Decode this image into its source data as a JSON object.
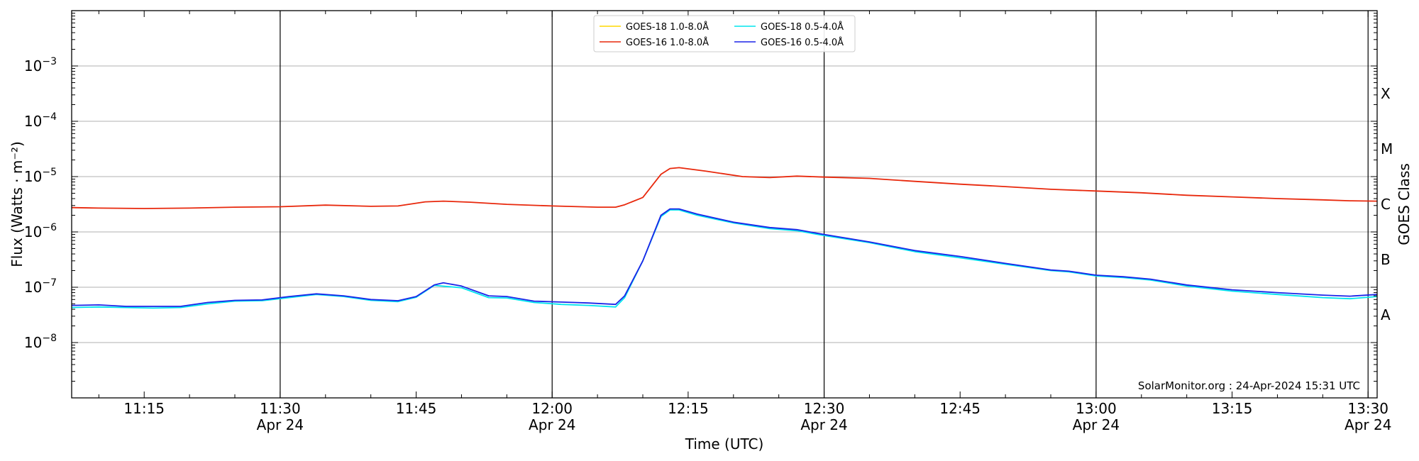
{
  "chart_data": {
    "type": "line",
    "xlabel": "Time (UTC)",
    "ylabel": "Flux (Watts · m⁻²)",
    "y2label": "GOES Class",
    "yscale": "log",
    "ylim": [
      1e-09,
      0.01
    ],
    "xlim": [
      "2024-04-24T11:07",
      "2024-04-24T13:31"
    ],
    "grid": "horizontal at decades; vertical at half-hours",
    "legend_position": "top-center",
    "credit": "SolarMonitor.org : 24-Apr-2024 15:31 UTC",
    "x_ticks": [
      {
        "time": "11:15",
        "label": "11:15",
        "date": ""
      },
      {
        "time": "11:30",
        "label": "11:30",
        "date": "Apr 24"
      },
      {
        "time": "11:45",
        "label": "11:45",
        "date": ""
      },
      {
        "time": "12:00",
        "label": "12:00",
        "date": "Apr 24"
      },
      {
        "time": "12:15",
        "label": "12:15",
        "date": ""
      },
      {
        "time": "12:30",
        "label": "12:30",
        "date": "Apr 24"
      },
      {
        "time": "12:45",
        "label": "12:45",
        "date": ""
      },
      {
        "time": "13:00",
        "label": "13:00",
        "date": "Apr 24"
      },
      {
        "time": "13:15",
        "label": "13:15",
        "date": ""
      },
      {
        "time": "13:30",
        "label": "13:30",
        "date": "Apr 24"
      }
    ],
    "y_ticks": [
      {
        "exp": -8,
        "label": "10",
        "sup": "−8"
      },
      {
        "exp": -7,
        "label": "10",
        "sup": "−7"
      },
      {
        "exp": -6,
        "label": "10",
        "sup": "−6"
      },
      {
        "exp": -5,
        "label": "10",
        "sup": "−5"
      },
      {
        "exp": -4,
        "label": "10",
        "sup": "−4"
      },
      {
        "exp": -3,
        "label": "10",
        "sup": "−3"
      }
    ],
    "goes_classes": [
      {
        "label": "A",
        "exp": -7.5
      },
      {
        "label": "B",
        "exp": -6.5
      },
      {
        "label": "C",
        "exp": -5.5
      },
      {
        "label": "M",
        "exp": -4.5
      },
      {
        "label": "X",
        "exp": -3.5
      }
    ],
    "series": [
      {
        "name": "GOES-18 1.0-8.0Å",
        "color": "#ffd700",
        "legend_row": 0,
        "legend_col": 0,
        "points": []
      },
      {
        "name": "GOES-18 0.5-4.0Å",
        "color": "#00e5ee",
        "legend_row": 0,
        "legend_col": 1,
        "points": [
          [
            "11:07",
            4.3e-08
          ],
          [
            "11:10",
            4.4e-08
          ],
          [
            "11:13",
            4.3e-08
          ],
          [
            "11:16",
            4.2e-08
          ],
          [
            "11:19",
            4.3e-08
          ],
          [
            "11:22",
            5e-08
          ],
          [
            "11:25",
            5.6e-08
          ],
          [
            "11:28",
            5.7e-08
          ],
          [
            "11:31",
            6.5e-08
          ],
          [
            "11:34",
            7.4e-08
          ],
          [
            "11:37",
            6.8e-08
          ],
          [
            "11:40",
            5.8e-08
          ],
          [
            "11:43",
            5.5e-08
          ],
          [
            "11:45",
            6.6e-08
          ],
          [
            "11:47",
            1.08e-07
          ],
          [
            "11:50",
            9.8e-08
          ],
          [
            "11:53",
            6.5e-08
          ],
          [
            "11:55",
            6.4e-08
          ],
          [
            "11:58",
            5.3e-08
          ],
          [
            "12:01",
            4.9e-08
          ],
          [
            "12:04",
            4.7e-08
          ],
          [
            "12:07",
            4.4e-08
          ],
          [
            "12:08",
            6.5e-08
          ],
          [
            "12:10",
            3e-07
          ],
          [
            "12:12",
            1.9e-06
          ],
          [
            "12:13",
            2.5e-06
          ],
          [
            "12:14",
            2.5e-06
          ],
          [
            "12:16",
            2e-06
          ],
          [
            "12:20",
            1.45e-06
          ],
          [
            "12:24",
            1.15e-06
          ],
          [
            "12:27",
            1.05e-06
          ],
          [
            "12:30",
            8.6e-07
          ],
          [
            "12:35",
            6.4e-07
          ],
          [
            "12:40",
            4.4e-07
          ],
          [
            "12:45",
            3.4e-07
          ],
          [
            "12:50",
            2.6e-07
          ],
          [
            "12:55",
            2e-07
          ],
          [
            "12:57",
            1.9e-07
          ],
          [
            "13:00",
            1.6e-07
          ],
          [
            "13:03",
            1.5e-07
          ],
          [
            "13:06",
            1.35e-07
          ],
          [
            "13:10",
            1.05e-07
          ],
          [
            "13:15",
            8.5e-08
          ],
          [
            "13:20",
            7.4e-08
          ],
          [
            "13:25",
            6.5e-08
          ],
          [
            "13:28",
            6.2e-08
          ],
          [
            "13:31",
            6.8e-08
          ]
        ]
      },
      {
        "name": "GOES-16 1.0-8.0Å",
        "color": "#e8280c",
        "legend_row": 1,
        "legend_col": 0,
        "points": [
          [
            "11:07",
            2.75e-06
          ],
          [
            "11:10",
            2.7e-06
          ],
          [
            "11:15",
            2.65e-06
          ],
          [
            "11:20",
            2.7e-06
          ],
          [
            "11:25",
            2.8e-06
          ],
          [
            "11:30",
            2.85e-06
          ],
          [
            "11:35",
            3.05e-06
          ],
          [
            "11:40",
            2.9e-06
          ],
          [
            "11:43",
            2.95e-06
          ],
          [
            "11:46",
            3.5e-06
          ],
          [
            "11:48",
            3.6e-06
          ],
          [
            "11:51",
            3.45e-06
          ],
          [
            "11:55",
            3.15e-06
          ],
          [
            "12:00",
            2.95e-06
          ],
          [
            "12:05",
            2.8e-06
          ],
          [
            "12:07",
            2.8e-06
          ],
          [
            "12:08",
            3.1e-06
          ],
          [
            "12:10",
            4.2e-06
          ],
          [
            "12:12",
            1.1e-05
          ],
          [
            "12:13",
            1.4e-05
          ],
          [
            "12:14",
            1.45e-05
          ],
          [
            "12:17",
            1.25e-05
          ],
          [
            "12:21",
            1e-05
          ],
          [
            "12:24",
            9.6e-06
          ],
          [
            "12:27",
            1.02e-05
          ],
          [
            "12:30",
            9.8e-06
          ],
          [
            "12:35",
            9.3e-06
          ],
          [
            "12:40",
            8.2e-06
          ],
          [
            "12:45",
            7.3e-06
          ],
          [
            "12:50",
            6.6e-06
          ],
          [
            "12:55",
            5.9e-06
          ],
          [
            "13:00",
            5.5e-06
          ],
          [
            "13:05",
            5.1e-06
          ],
          [
            "13:10",
            4.6e-06
          ],
          [
            "13:15",
            4.3e-06
          ],
          [
            "13:20",
            4e-06
          ],
          [
            "13:25",
            3.8e-06
          ],
          [
            "13:28",
            3.65e-06
          ],
          [
            "13:31",
            3.6e-06
          ]
        ]
      },
      {
        "name": "GOES-16 0.5-4.0Å",
        "color": "#1b24e8",
        "legend_row": 1,
        "legend_col": 1,
        "points": [
          [
            "11:07",
            4.7e-08
          ],
          [
            "11:10",
            4.8e-08
          ],
          [
            "11:13",
            4.5e-08
          ],
          [
            "11:16",
            4.5e-08
          ],
          [
            "11:19",
            4.5e-08
          ],
          [
            "11:22",
            5.3e-08
          ],
          [
            "11:25",
            5.8e-08
          ],
          [
            "11:28",
            5.9e-08
          ],
          [
            "11:31",
            6.8e-08
          ],
          [
            "11:34",
            7.6e-08
          ],
          [
            "11:37",
            7e-08
          ],
          [
            "11:40",
            6e-08
          ],
          [
            "11:43",
            5.7e-08
          ],
          [
            "11:45",
            6.8e-08
          ],
          [
            "11:47",
            1.1e-07
          ],
          [
            "11:48",
            1.2e-07
          ],
          [
            "11:50",
            1.05e-07
          ],
          [
            "11:53",
            7e-08
          ],
          [
            "11:55",
            6.8e-08
          ],
          [
            "11:58",
            5.6e-08
          ],
          [
            "12:01",
            5.4e-08
          ],
          [
            "12:04",
            5.2e-08
          ],
          [
            "12:07",
            4.9e-08
          ],
          [
            "12:08",
            7e-08
          ],
          [
            "12:10",
            3e-07
          ],
          [
            "12:12",
            2e-06
          ],
          [
            "12:13",
            2.6e-06
          ],
          [
            "12:14",
            2.6e-06
          ],
          [
            "12:16",
            2.1e-06
          ],
          [
            "12:20",
            1.5e-06
          ],
          [
            "12:24",
            1.2e-06
          ],
          [
            "12:27",
            1.1e-06
          ],
          [
            "12:30",
            9e-07
          ],
          [
            "12:35",
            6.6e-07
          ],
          [
            "12:40",
            4.6e-07
          ],
          [
            "12:45",
            3.6e-07
          ],
          [
            "12:50",
            2.7e-07
          ],
          [
            "12:55",
            2.05e-07
          ],
          [
            "12:57",
            1.95e-07
          ],
          [
            "13:00",
            1.65e-07
          ],
          [
            "13:03",
            1.55e-07
          ],
          [
            "13:06",
            1.4e-07
          ],
          [
            "13:10",
            1.1e-07
          ],
          [
            "13:15",
            9e-08
          ],
          [
            "13:20",
            8e-08
          ],
          [
            "13:25",
            7.2e-08
          ],
          [
            "13:28",
            6.9e-08
          ],
          [
            "13:31",
            7.4e-08
          ]
        ]
      }
    ]
  }
}
